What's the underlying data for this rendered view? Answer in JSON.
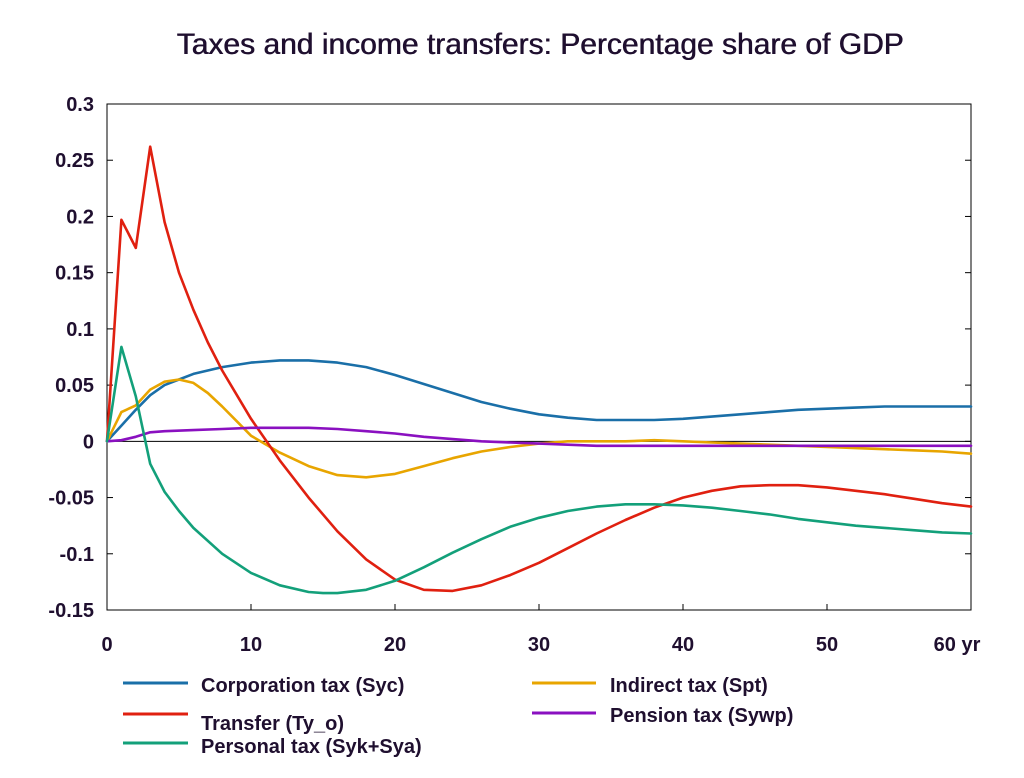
{
  "chart_data": {
    "type": "line",
    "title": "Taxes and income transfers: Percentage share of GDP",
    "xlabel": "",
    "ylabel": "",
    "xlim": [
      0,
      60
    ],
    "ylim": [
      -0.15,
      0.3
    ],
    "x_ticks": [
      "0",
      "10",
      "20",
      "30",
      "40",
      "50",
      "60 yr"
    ],
    "x_tick_values": [
      0,
      10,
      20,
      30,
      40,
      50,
      60
    ],
    "y_ticks": [
      "0.3",
      "0.25",
      "0.2",
      "0.15",
      "0.1",
      "0.05",
      "0",
      "-0.05",
      "-0.1",
      "-0.15"
    ],
    "y_tick_values": [
      0.3,
      0.25,
      0.2,
      0.15,
      0.1,
      0.05,
      0,
      -0.05,
      -0.1,
      -0.15
    ],
    "grid": false,
    "legend_position": "bottom",
    "series": [
      {
        "name": "Corporation tax (Syc)",
        "color": "#1a6fa8",
        "x": [
          0,
          1,
          2,
          3,
          4,
          5,
          6,
          8,
          10,
          12,
          14,
          16,
          18,
          20,
          22,
          24,
          26,
          28,
          30,
          32,
          34,
          36,
          38,
          40,
          42,
          44,
          46,
          48,
          50,
          52,
          54,
          56,
          58,
          60
        ],
        "y": [
          0,
          0.014,
          0.028,
          0.041,
          0.05,
          0.055,
          0.06,
          0.066,
          0.07,
          0.072,
          0.072,
          0.07,
          0.066,
          0.059,
          0.051,
          0.043,
          0.035,
          0.029,
          0.024,
          0.021,
          0.019,
          0.019,
          0.019,
          0.02,
          0.022,
          0.024,
          0.026,
          0.028,
          0.029,
          0.03,
          0.031,
          0.031,
          0.031,
          0.031
        ]
      },
      {
        "name": "Indirect tax (Spt)",
        "color": "#e8a500",
        "x": [
          0,
          1,
          2,
          3,
          4,
          5,
          6,
          7,
          8,
          9,
          10,
          12,
          14,
          16,
          18,
          20,
          22,
          24,
          26,
          28,
          30,
          32,
          34,
          36,
          38,
          40,
          42,
          44,
          46,
          48,
          50,
          52,
          54,
          56,
          58,
          60
        ],
        "y": [
          0,
          0.026,
          0.032,
          0.046,
          0.053,
          0.055,
          0.052,
          0.043,
          0.031,
          0.018,
          0.005,
          -0.01,
          -0.022,
          -0.03,
          -0.032,
          -0.029,
          -0.022,
          -0.015,
          -0.009,
          -0.005,
          -0.002,
          0.0,
          0.0,
          0.0,
          0.001,
          0.0,
          -0.001,
          -0.002,
          -0.003,
          -0.004,
          -0.005,
          -0.006,
          -0.007,
          -0.008,
          -0.009,
          -0.011
        ]
      },
      {
        "name": "Transfer (Ty_o)",
        "color": "#e02010",
        "x": [
          0,
          1,
          2,
          3,
          4,
          5,
          6,
          7,
          8,
          10,
          12,
          14,
          16,
          18,
          20,
          22,
          24,
          26,
          28,
          30,
          32,
          34,
          36,
          38,
          40,
          42,
          44,
          46,
          48,
          50,
          52,
          54,
          56,
          58,
          60
        ],
        "y": [
          0,
          0.197,
          0.172,
          0.262,
          0.195,
          0.15,
          0.117,
          0.088,
          0.063,
          0.02,
          -0.017,
          -0.05,
          -0.08,
          -0.105,
          -0.123,
          -0.132,
          -0.133,
          -0.128,
          -0.119,
          -0.108,
          -0.095,
          -0.082,
          -0.07,
          -0.059,
          -0.05,
          -0.044,
          -0.04,
          -0.039,
          -0.039,
          -0.041,
          -0.044,
          -0.047,
          -0.051,
          -0.055,
          -0.058
        ]
      },
      {
        "name": "Pension tax (Sywp)",
        "color": "#8a10c0",
        "x": [
          0,
          1,
          2,
          3,
          4,
          6,
          8,
          10,
          12,
          14,
          16,
          18,
          20,
          22,
          24,
          26,
          28,
          30,
          32,
          34,
          36,
          38,
          40,
          45,
          50,
          55,
          60
        ],
        "y": [
          0,
          0.001,
          0.004,
          0.008,
          0.009,
          0.01,
          0.011,
          0.012,
          0.012,
          0.012,
          0.011,
          0.009,
          0.007,
          0.004,
          0.002,
          0.0,
          -0.001,
          -0.002,
          -0.003,
          -0.004,
          -0.004,
          -0.004,
          -0.004,
          -0.004,
          -0.004,
          -0.004,
          -0.004
        ]
      },
      {
        "name": "Personal tax (Syk+Sya)",
        "color": "#13a07a",
        "x": [
          0,
          1,
          2,
          3,
          4,
          5,
          6,
          8,
          10,
          12,
          14,
          15,
          16,
          18,
          20,
          22,
          24,
          26,
          28,
          30,
          32,
          34,
          36,
          38,
          40,
          42,
          44,
          46,
          48,
          50,
          52,
          54,
          56,
          58,
          60
        ],
        "y": [
          0,
          0.084,
          0.04,
          -0.02,
          -0.045,
          -0.062,
          -0.077,
          -0.1,
          -0.117,
          -0.128,
          -0.134,
          -0.135,
          -0.135,
          -0.132,
          -0.124,
          -0.112,
          -0.099,
          -0.087,
          -0.076,
          -0.068,
          -0.062,
          -0.058,
          -0.056,
          -0.056,
          -0.057,
          -0.059,
          -0.062,
          -0.065,
          -0.069,
          -0.072,
          -0.075,
          -0.077,
          -0.079,
          -0.081,
          -0.082
        ]
      }
    ]
  },
  "legend": {
    "corporation": "Corporation tax (Syc)",
    "indirect": "Indirect tax (Spt)",
    "transfer": "Transfer (Ty_o)",
    "pension": "Pension tax (Sywp)",
    "personal": "Personal tax (Syk+Sya)"
  }
}
